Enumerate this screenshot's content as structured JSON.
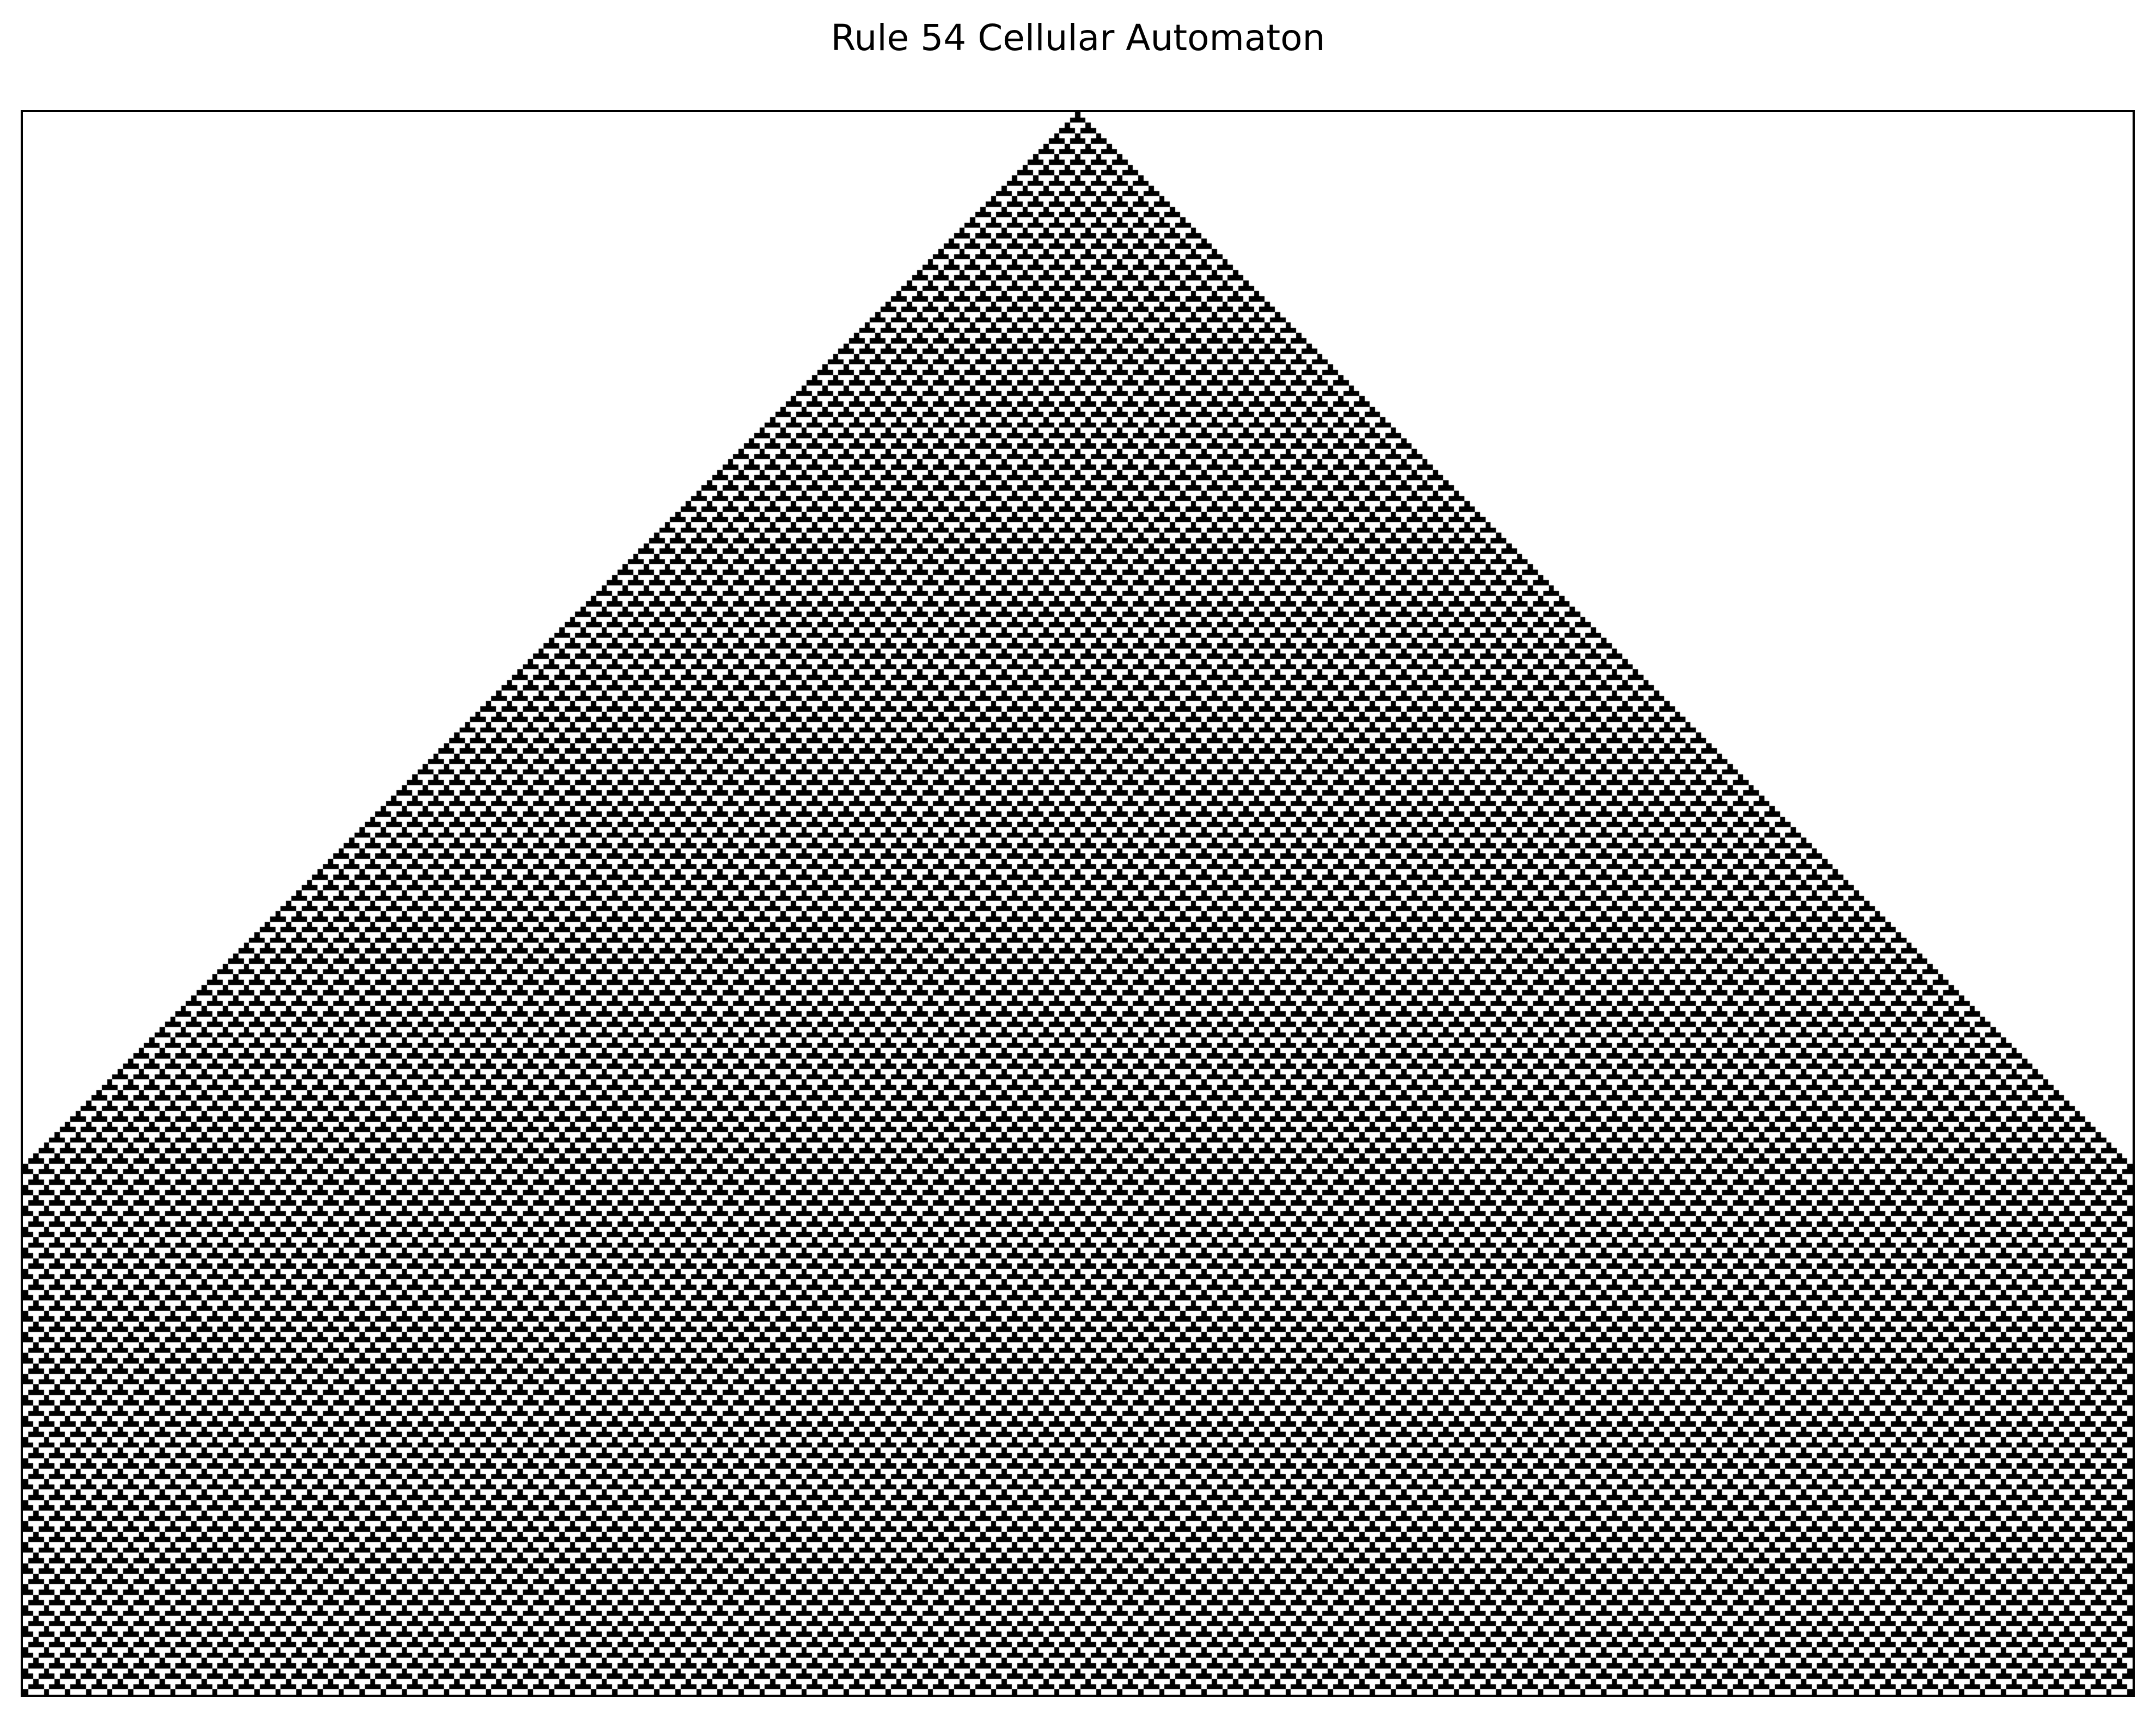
{
  "figure": {
    "title": "Rule 54 Cellular Automaton"
  },
  "automaton": {
    "rule": 54,
    "initial_condition": "single-center-cell",
    "boundary": "fixed-zero",
    "colors": {
      "live": "#000000",
      "dead": "#ffffff",
      "frame": "#000000"
    }
  }
}
